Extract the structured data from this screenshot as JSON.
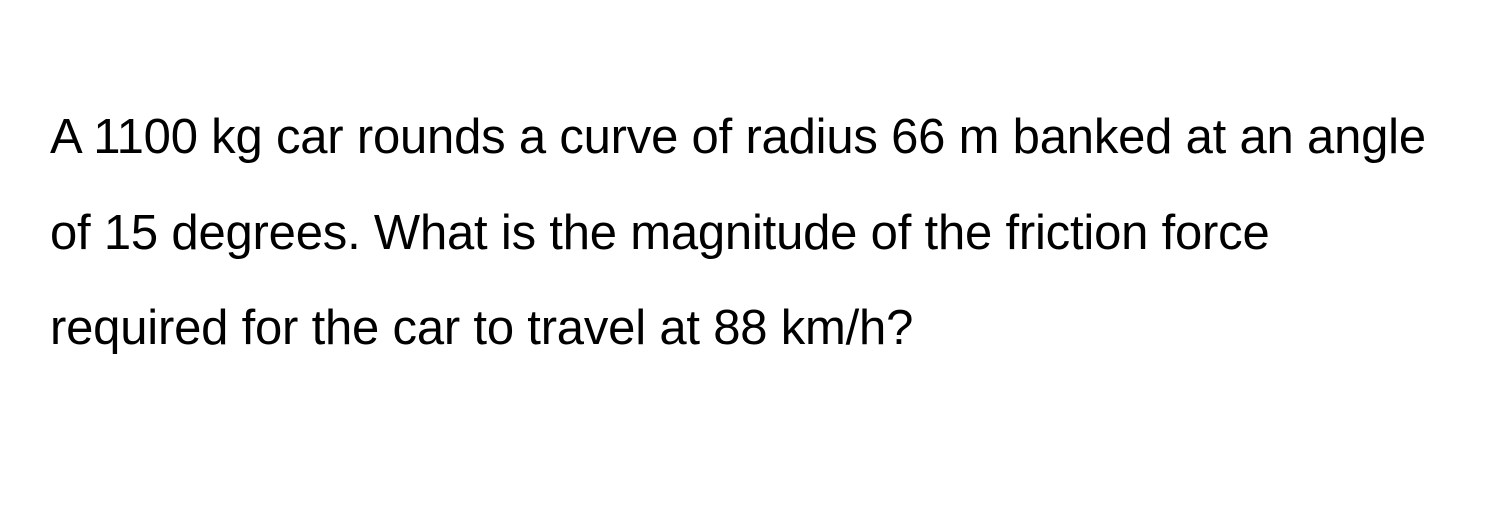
{
  "problem": {
    "text": "A 1100 kg car rounds a curve of radius 66 m banked at an angle of 15 degrees. What is the magnitude of the friction force required for the car to travel at 88 km/h?",
    "font_size_pt": 37,
    "line_height": 1.95,
    "text_color": "#000000",
    "background_color": "#ffffff",
    "font_weight": 400
  }
}
